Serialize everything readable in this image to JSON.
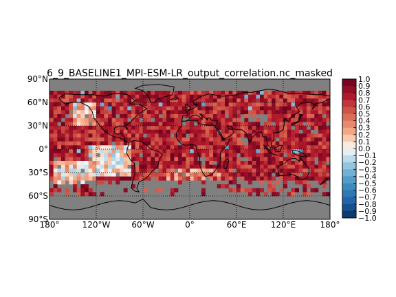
{
  "chart_data": {
    "type": "heatmap",
    "title": "6_9_BASELINE1_MPI-ESM-LR_output_correlation.nc_masked",
    "xlabel": "",
    "ylabel": "",
    "xlim": [
      -180,
      180
    ],
    "ylim": [
      -90,
      90
    ],
    "grid": true,
    "grid_style": "dotted",
    "x_ticks": [
      -180,
      -120,
      -60,
      0,
      60,
      120,
      180
    ],
    "x_tick_labels": [
      "180°",
      "120°W",
      "60°W",
      "0°",
      "60°E",
      "120°E",
      "180°"
    ],
    "y_ticks": [
      90,
      60,
      30,
      0,
      -30,
      -60,
      -90
    ],
    "y_tick_labels": [
      "90°N",
      "60°N",
      "30°N",
      "0°",
      "30°S",
      "60°S",
      "90°S"
    ],
    "colorbar": {
      "cmap": "RdBu_r",
      "vmin": -1.0,
      "vmax": 1.0,
      "ticks": [
        1.0,
        0.9,
        0.8,
        0.7,
        0.6,
        0.5,
        0.4,
        0.3,
        0.2,
        0.1,
        0.0,
        -0.1,
        -0.2,
        -0.3,
        -0.4,
        -0.5,
        -0.6,
        -0.7,
        -0.8,
        -0.9,
        -1.0
      ],
      "tick_labels": [
        "1.0",
        "0.9",
        "0.8",
        "0.7",
        "0.6",
        "0.5",
        "0.4",
        "0.3",
        "0.2",
        "0.1",
        "0.0",
        "−0.1",
        "−0.2",
        "−0.3",
        "−0.4",
        "−0.5",
        "−0.6",
        "−0.7",
        "−0.8",
        "−0.9",
        "−1.0"
      ]
    },
    "mask_color": "#808080",
    "masked_regions_desc": "grey cells over the Arctic (north of ~75N), Antarctica and Southern Ocean (south of ~60S), and scattered grey gaps in tropical and subtropical oceans",
    "value_pattern": "mostly positive correlations 0.5-1.0 (dark red) in mid-latitudes and tropics, near-zero white patches in eastern tropical Pacific and South Pacific subtropics, scattered weak negative (light blue) cells"
  },
  "colors": {
    "background": "#ffffff",
    "mask": "#808080",
    "coastline": "#000000"
  }
}
